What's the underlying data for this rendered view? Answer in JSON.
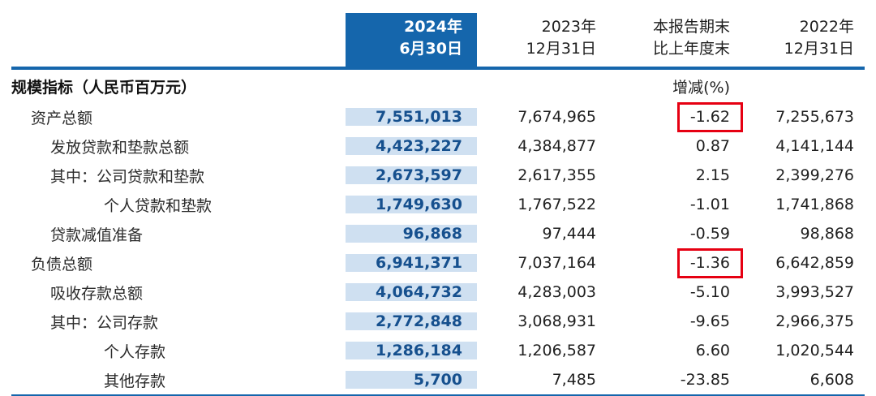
{
  "table": {
    "header": {
      "col_2024_line1": "2024年",
      "col_2024_line2": "6月30日",
      "col_2023_line1": "2023年",
      "col_2023_line2": "12月31日",
      "col_change_line1": "本报告期末",
      "col_change_line2": "比上年度末",
      "col_2022_line1": "2022年",
      "col_2022_line2": "12月31日"
    },
    "section": {
      "label": "规模指标（人民币百万元）",
      "change_unit": "增减(%)"
    },
    "rows": [
      {
        "label": "资产总额",
        "indent": 1,
        "v2024": "7,551,013",
        "v2023": "7,674,965",
        "change": "-1.62",
        "v2022": "7,255,673",
        "highlight": true
      },
      {
        "label": "发放贷款和垫款总额",
        "indent": 2,
        "v2024": "4,423,227",
        "v2023": "4,384,877",
        "change": "0.87",
        "v2022": "4,141,144",
        "highlight": false
      },
      {
        "label": "其中：公司贷款和垫款",
        "indent": 2,
        "v2024": "2,673,597",
        "v2023": "2,617,355",
        "change": "2.15",
        "v2022": "2,399,276",
        "highlight": false
      },
      {
        "label": "个人贷款和垫款",
        "indent": 3,
        "v2024": "1,749,630",
        "v2023": "1,767,522",
        "change": "-1.01",
        "v2022": "1,741,868",
        "highlight": false
      },
      {
        "label": "贷款减值准备",
        "indent": 2,
        "v2024": "96,868",
        "v2023": "97,444",
        "change": "-0.59",
        "v2022": "98,868",
        "highlight": false
      },
      {
        "label": "负债总额",
        "indent": 1,
        "v2024": "6,941,371",
        "v2023": "7,037,164",
        "change": "-1.36",
        "v2022": "6,642,859",
        "highlight": true
      },
      {
        "label": "吸收存款总额",
        "indent": 2,
        "v2024": "4,064,732",
        "v2023": "4,283,003",
        "change": "-5.10",
        "v2022": "3,993,527",
        "highlight": false
      },
      {
        "label": "其中：公司存款",
        "indent": 2,
        "v2024": "2,772,848",
        "v2023": "3,068,931",
        "change": "-9.65",
        "v2022": "2,966,375",
        "highlight": false
      },
      {
        "label": "个人存款",
        "indent": 3,
        "v2024": "1,286,184",
        "v2023": "1,206,587",
        "change": "6.60",
        "v2022": "1,020,544",
        "highlight": false
      },
      {
        "label": "其他存款",
        "indent": 3,
        "v2024": "5,700",
        "v2023": "7,485",
        "change": "-23.85",
        "v2022": "6,608",
        "highlight": false
      }
    ],
    "colors": {
      "header_blue": "#1566ac",
      "column_light_blue": "#cfe0f1",
      "value_blue": "#16508e",
      "highlight_red": "#e60012"
    }
  }
}
